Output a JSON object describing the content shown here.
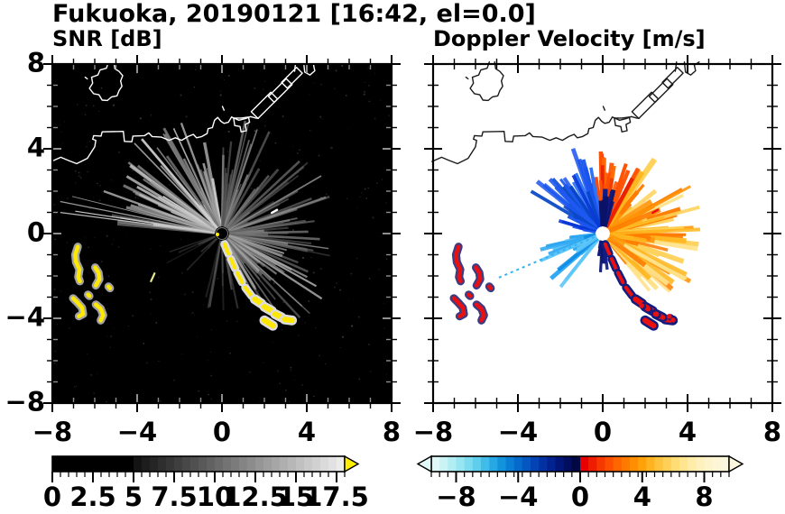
{
  "title": "Fukuoka, 20190121 [16:42, el=0.0]",
  "panels": {
    "snr": {
      "subtitle": "SNR [dB]",
      "bg": "#000000",
      "coast_color": "#ffffff",
      "tick_in": "#909090",
      "tick_out": "#000000",
      "track_main": "#ffe800",
      "track_halo": "#dcdcdc",
      "blob_main": "#ffe800",
      "blob_halo": "#c0c0c0",
      "dash_color": "#ffffff",
      "dash2_color": "#e8e890",
      "center_disk": "#000000",
      "center_ring": "#777777",
      "center_dot": "#ffee00"
    },
    "doppler": {
      "subtitle": "Doppler Velocity [m/s]",
      "bg": "#ffffff",
      "coast_color": "#1a1a1a",
      "tick_in": "#000000",
      "tick_out": "#000000",
      "track_main": "#e81010",
      "track_halo": "#131d7e",
      "blob_main": "#e81010",
      "blob_halo": "#1a1a6e",
      "dash_color": "#e81010",
      "dash2_color": "",
      "center_disk": "#ffffff",
      "center_ring": "#ffffff",
      "center_dot": "#ffffff"
    }
  },
  "axes": {
    "xlim": [
      -8,
      8
    ],
    "ylim": [
      -8,
      8
    ],
    "x_tick_labels": [
      "−8",
      "−4",
      "0",
      "4",
      "8"
    ],
    "y_tick_labels": [
      "8",
      "4",
      "0",
      "−4",
      "−8"
    ],
    "minor_step": 1,
    "major_step": 4
  },
  "colorbars": {
    "snr": {
      "labels": [
        "0",
        "2.5",
        "5",
        "7.5",
        "10",
        "12.5",
        "15",
        "17.5"
      ],
      "values": [
        0,
        2.5,
        5,
        7.5,
        10,
        12.5,
        15,
        17.5
      ],
      "range": [
        0,
        18
      ],
      "solid_black_to": 5,
      "segment_step": 0.5,
      "over_arrow_color": "#ffee00",
      "palette": "grayscale"
    },
    "doppler": {
      "labels": [
        "−8",
        "−4",
        "0",
        "4",
        "8"
      ],
      "values": [
        -8,
        -4,
        0,
        4,
        8
      ],
      "range": [
        -9.6,
        9.6
      ],
      "under_arrow_color": "#e2f9f9",
      "over_arrow_color": "#fbf7dc",
      "cold_colors": [
        "#e0f8f8",
        "#c9f3f4",
        "#b1edf2",
        "#97e5f0",
        "#7cdbee",
        "#5fceec",
        "#41bce9",
        "#27a8e4",
        "#1493dd",
        "#0a7ed4",
        "#066aca",
        "#0456c0",
        "#0343b4",
        "#0231a4",
        "#022290",
        "#011678",
        "#010d5e",
        "#010844"
      ],
      "warm_colors": [
        "#e60000",
        "#ef1d00",
        "#f73700",
        "#fd4f00",
        "#ff6600",
        "#ff7b00",
        "#ff8f00",
        "#ffa20a",
        "#ffb321",
        "#ffc23c",
        "#ffd058",
        "#ffdc74",
        "#ffe58f",
        "#ffeca8",
        "#fff1bd",
        "#fef4cc",
        "#fdf6d6",
        "#fcf8dd"
      ]
    }
  },
  "chart_data": [
    {
      "type": "heatmap",
      "title": "SNR [dB]",
      "xlabel": "",
      "ylabel": "",
      "xlim": [
        -8,
        8
      ],
      "ylim": [
        -8,
        8
      ],
      "xticks": [
        -8,
        -4,
        0,
        4,
        8
      ],
      "yticks": [
        -8,
        -4,
        0,
        4,
        8
      ],
      "grid": false,
      "colorbar": {
        "ticks": [
          0,
          2.5,
          5,
          7.5,
          10,
          12.5,
          15,
          17.5
        ],
        "range": [
          0,
          18
        ],
        "over_range_arrow": true,
        "palette": "black to white grayscale with yellow over-range arrow"
      },
      "radar_origin": [
        0,
        0
      ],
      "features": "Gray backscatter rays radiate from radar at origin (strongest to NW/NE/E/SE, max reach ~6 units); yellow high-SNR ship echoes near (-6.8,-1.4), (-5.9,-2.0), (-6.8,-3.5), (-5.8,-3.8) and a yellow ship track from origin to (3.3,-4.2); white Fukuoka coastline across upper third on black sea"
    },
    {
      "type": "heatmap",
      "title": "Doppler Velocity [m/s]",
      "xlabel": "",
      "ylabel": "",
      "xlim": [
        -8,
        8
      ],
      "ylim": [
        -8,
        8
      ],
      "xticks": [
        -8,
        -4,
        0,
        4,
        8
      ],
      "yticks": [
        -8,
        -4,
        0,
        4,
        8
      ],
      "grid": false,
      "colorbar": {
        "ticks": [
          -8,
          -4,
          0,
          4,
          8
        ],
        "range": [
          -9.6,
          9.6
        ],
        "under_range_arrow": true,
        "over_range_arrow": true,
        "palette": "light cyan through blue to dark navy (negative), red through orange to pale yellow (positive)"
      },
      "radar_origin": [
        0,
        0
      ],
      "features": "Velocity fan at origin: blue streaks to NW, red/orange with navy patches to N, broad yellow-orange fan to E/SE, cyan fan to WSW; red ship echoes with navy edges at same ship locations; black coastline on white background"
    }
  ],
  "scene": {
    "coastlines": [
      [
        [
          -8.05,
          3.4
        ],
        [
          -7.6,
          3.6
        ],
        [
          -7.25,
          3.45
        ],
        [
          -6.85,
          3.3
        ],
        [
          -6.35,
          3.55
        ],
        [
          -6.0,
          4.1
        ],
        [
          -5.95,
          4.4
        ],
        [
          -6.1,
          4.45
        ],
        [
          -6.05,
          4.62
        ],
        [
          -5.7,
          4.6
        ],
        [
          -5.65,
          4.8
        ],
        [
          -4.65,
          4.82
        ],
        [
          -4.6,
          4.35
        ],
        [
          -4.25,
          4.33
        ],
        [
          -4.2,
          4.6
        ],
        [
          -3.65,
          4.62
        ],
        [
          -3.45,
          4.75
        ],
        [
          -3.3,
          4.58
        ],
        [
          -2.85,
          4.55
        ],
        [
          -2.5,
          4.4
        ],
        [
          -2.2,
          4.52
        ],
        [
          -1.9,
          4.4
        ],
        [
          -1.6,
          4.58
        ],
        [
          -1.35,
          4.68
        ],
        [
          -1.2,
          4.52
        ],
        [
          -0.95,
          4.58
        ],
        [
          -0.7,
          4.72
        ],
        [
          -0.65,
          4.95
        ],
        [
          -0.45,
          5.0
        ],
        [
          -0.35,
          5.35
        ],
        [
          -0.2,
          5.48
        ],
        [
          -0.05,
          5.3
        ],
        [
          0.1,
          5.2
        ],
        [
          0.3,
          5.25
        ],
        [
          0.45,
          5.5
        ]
      ],
      [
        [
          -5.35,
          8.1
        ],
        [
          -5.45,
          7.8
        ],
        [
          -5.75,
          7.72
        ],
        [
          -5.85,
          7.48
        ],
        [
          -6.15,
          7.38
        ],
        [
          -6.1,
          7.1
        ],
        [
          -6.25,
          6.85
        ],
        [
          -6.05,
          6.6
        ],
        [
          -5.8,
          6.55
        ],
        [
          -5.65,
          6.3
        ],
        [
          -5.4,
          6.28
        ],
        [
          -5.2,
          6.45
        ],
        [
          -4.95,
          6.5
        ],
        [
          -4.85,
          6.75
        ],
        [
          -4.72,
          6.95
        ],
        [
          -4.78,
          7.2
        ],
        [
          -4.68,
          7.45
        ],
        [
          -4.85,
          7.65
        ],
        [
          -5.05,
          7.78
        ],
        [
          -5.1,
          8.1
        ]
      ],
      [
        [
          -6.45,
          7.38
        ],
        [
          -6.35,
          7.3
        ]
      ],
      [
        [
          0.02,
          6.0
        ],
        [
          0.1,
          5.82
        ]
      ],
      [
        [
          0.55,
          5.45
        ],
        [
          0.6,
          5.1
        ],
        [
          0.85,
          5.05
        ],
        [
          0.9,
          4.8
        ],
        [
          1.15,
          4.85
        ],
        [
          1.1,
          5.15
        ],
        [
          1.3,
          5.25
        ],
        [
          1.25,
          5.5
        ],
        [
          0.9,
          5.45
        ],
        [
          0.55,
          5.45
        ]
      ],
      [
        [
          0.45,
          5.5
        ],
        [
          0.8,
          5.35
        ],
        [
          1.1,
          5.42
        ],
        [
          1.35,
          5.52
        ],
        [
          1.6,
          5.45
        ],
        [
          1.72,
          5.44
        ]
      ],
      [
        [
          2.3,
          6.67
        ],
        [
          2.62,
          6.35
        ],
        [
          1.7,
          5.43
        ],
        [
          1.38,
          5.75
        ],
        [
          2.3,
          6.67
        ]
      ],
      [
        [
          3.03,
          7.31
        ],
        [
          3.31,
          7.03
        ],
        [
          2.47,
          6.19
        ],
        [
          2.19,
          6.47
        ],
        [
          3.03,
          7.31
        ]
      ],
      [
        [
          3.52,
          7.84
        ],
        [
          3.79,
          7.57
        ],
        [
          3.08,
          6.86
        ],
        [
          2.81,
          7.13
        ],
        [
          3.52,
          7.84
        ]
      ],
      [
        [
          3.42,
          7.66
        ],
        [
          3.48,
          8.1
        ]
      ],
      [
        [
          3.85,
          8.1
        ],
        [
          3.9,
          7.62
        ],
        [
          4.15,
          7.48
        ],
        [
          4.38,
          7.68
        ],
        [
          4.32,
          7.95
        ],
        [
          4.55,
          8.1
        ]
      ]
    ],
    "ship_blobs": [
      [
        [
          -6.8,
          -0.62
        ],
        [
          -6.92,
          -1.0
        ],
        [
          -6.88,
          -1.35
        ],
        [
          -6.72,
          -1.7
        ],
        [
          -6.78,
          -2.05
        ],
        [
          -6.7,
          -2.25
        ]
      ],
      [
        [
          -5.98,
          -1.6
        ],
        [
          -5.82,
          -1.85
        ],
        [
          -5.78,
          -2.15
        ],
        [
          -5.95,
          -2.45
        ]
      ],
      [
        [
          -7.02,
          -3.05
        ],
        [
          -6.82,
          -3.25
        ],
        [
          -6.6,
          -3.5
        ],
        [
          -6.55,
          -3.8
        ],
        [
          -6.75,
          -3.9
        ]
      ],
      [
        [
          -5.95,
          -3.35
        ],
        [
          -5.72,
          -3.55
        ],
        [
          -5.6,
          -3.85
        ],
        [
          -5.72,
          -4.1
        ]
      ],
      [
        [
          -6.32,
          -2.88
        ],
        [
          -6.25,
          -2.95
        ]
      ],
      [
        [
          -5.35,
          -2.5
        ],
        [
          -5.28,
          -2.58
        ]
      ]
    ],
    "track_segments": [
      [
        [
          0.12,
          -0.5
        ],
        [
          0.3,
          -0.95
        ]
      ],
      [
        [
          0.42,
          -1.2
        ],
        [
          0.62,
          -1.65
        ]
      ],
      [
        [
          0.72,
          -1.85
        ],
        [
          0.95,
          -2.3
        ]
      ],
      [
        [
          1.1,
          -2.55
        ],
        [
          1.4,
          -2.95
        ]
      ],
      [
        [
          1.55,
          -3.1
        ],
        [
          1.85,
          -3.3
        ]
      ],
      [
        [
          2.0,
          -3.45
        ],
        [
          2.35,
          -3.65
        ]
      ],
      [
        [
          2.5,
          -3.8
        ],
        [
          2.8,
          -3.95
        ]
      ],
      [
        [
          2.95,
          -4.05
        ],
        [
          3.3,
          -4.1
        ]
      ],
      [
        [
          2.0,
          -4.1
        ],
        [
          2.4,
          -4.35
        ]
      ]
    ],
    "dash_pos": [
      [
        2.35,
        0.98
      ],
      [
        2.6,
        1.12
      ]
    ],
    "dash2_pos": [
      [
        -3.35,
        -2.25
      ],
      [
        -3.18,
        -1.88
      ]
    ],
    "snr_sectors": [
      {
        "a0": 96,
        "a1": 175,
        "n": 60,
        "l0": 35,
        "l1": 140,
        "w0": 1.5,
        "w1": 3.5,
        "o0": 0.45,
        "o1": 1.0,
        "colors": [
          "#9a9a9a",
          "#bcbcbc",
          "#787878",
          "#d0d0d0"
        ]
      },
      {
        "a0": 166,
        "a1": 174,
        "n": 4,
        "l0": 140,
        "l1": 185,
        "w0": 0.8,
        "w1": 1.4,
        "o0": 0.7,
        "o1": 1.0,
        "colors": [
          "#aaaaaa",
          "#cccccc"
        ]
      },
      {
        "a0": 14,
        "a1": 90,
        "n": 45,
        "l0": 30,
        "l1": 130,
        "w0": 1.5,
        "w1": 3.0,
        "o0": 0.4,
        "o1": 0.9,
        "colors": [
          "#6a6a6a",
          "#8a8a8a",
          "#555555"
        ]
      },
      {
        "a0": -14,
        "a1": 14,
        "n": 22,
        "l0": 35,
        "l1": 125,
        "w0": 1.5,
        "w1": 3.0,
        "o0": 0.4,
        "o1": 0.9,
        "colors": [
          "#777777",
          "#999999",
          "#5a5a5a"
        ]
      },
      {
        "a0": -64,
        "a1": -14,
        "n": 32,
        "l0": 35,
        "l1": 135,
        "w0": 1.5,
        "w1": 3.2,
        "o0": 0.4,
        "o1": 0.95,
        "colors": [
          "#8a8a8a",
          "#6a6a6a",
          "#a5a5a5"
        ]
      },
      {
        "a0": -112,
        "a1": -70,
        "n": 14,
        "l0": 25,
        "l1": 85,
        "w0": 1.5,
        "w1": 2.5,
        "o0": 0.35,
        "o1": 0.8,
        "colors": [
          "#555555",
          "#444444"
        ]
      },
      {
        "a0": 195,
        "a1": 230,
        "n": 8,
        "l0": 20,
        "l1": 70,
        "w0": 1.2,
        "w1": 2.2,
        "o0": 0.3,
        "o1": 0.6,
        "colors": [
          "#484848"
        ]
      }
    ],
    "doppler_sectors": [
      {
        "a0": -52,
        "a1": 58,
        "n": 75,
        "l0": 25,
        "l1": 112,
        "w0": 3.0,
        "w1": 6.5,
        "o0": 0.85,
        "o1": 1.0,
        "colors": [
          "#ffd25a",
          "#ffb61e",
          "#ff9608",
          "#ffe288",
          "#ff7c00"
        ]
      },
      {
        "a0": 58,
        "a1": 100,
        "n": 26,
        "l0": 28,
        "l1": 92,
        "w0": 2.5,
        "w1": 5.0,
        "o0": 0.85,
        "o1": 1.0,
        "colors": [
          "#f03c00",
          "#e82000",
          "#ff6a00",
          "#ff5000"
        ]
      },
      {
        "a0": 100,
        "a1": 150,
        "n": 34,
        "l0": 30,
        "l1": 100,
        "w0": 2.5,
        "w1": 5.0,
        "o0": 0.85,
        "o1": 1.0,
        "colors": [
          "#1c56ee",
          "#0a38d8",
          "#2f74f8",
          "#0846c8"
        ]
      },
      {
        "a0": 150,
        "a1": 185,
        "n": 10,
        "l0": 15,
        "l1": 55,
        "w0": 2.0,
        "w1": 4.0,
        "o0": 0.8,
        "o1": 1.0,
        "colors": [
          "#1c56ee",
          "#0a38d8"
        ]
      },
      {
        "a0": 72,
        "a1": 100,
        "n": 10,
        "l0": 18,
        "l1": 55,
        "w0": 3.0,
        "w1": 6.0,
        "o0": 0.9,
        "o1": 1.0,
        "colors": [
          "#101c86",
          "#0a1268"
        ]
      },
      {
        "a0": 185,
        "a1": 232,
        "n": 24,
        "l0": 20,
        "l1": 78,
        "w0": 2.5,
        "w1": 5.0,
        "o0": 0.85,
        "o1": 1.0,
        "colors": [
          "#2ea8f2",
          "#5ec6fa",
          "#0b8ce6"
        ]
      },
      {
        "a0": 250,
        "a1": 278,
        "n": 9,
        "l0": 15,
        "l1": 48,
        "w0": 3.0,
        "w1": 6.0,
        "o0": 0.9,
        "o1": 1.0,
        "colors": [
          "#0c1674",
          "#13208e"
        ]
      }
    ],
    "doppler_dotted_ray": {
      "angle": 203,
      "length": 128,
      "color": "#30b4f4"
    },
    "doppler_track_dots": [
      [
        1.9,
        -3.45
      ],
      [
        2.2,
        -3.6
      ],
      [
        2.6,
        -3.85
      ],
      [
        2.9,
        -4.0
      ],
      [
        3.2,
        -3.95
      ],
      [
        3.38,
        -4.12
      ]
    ]
  }
}
